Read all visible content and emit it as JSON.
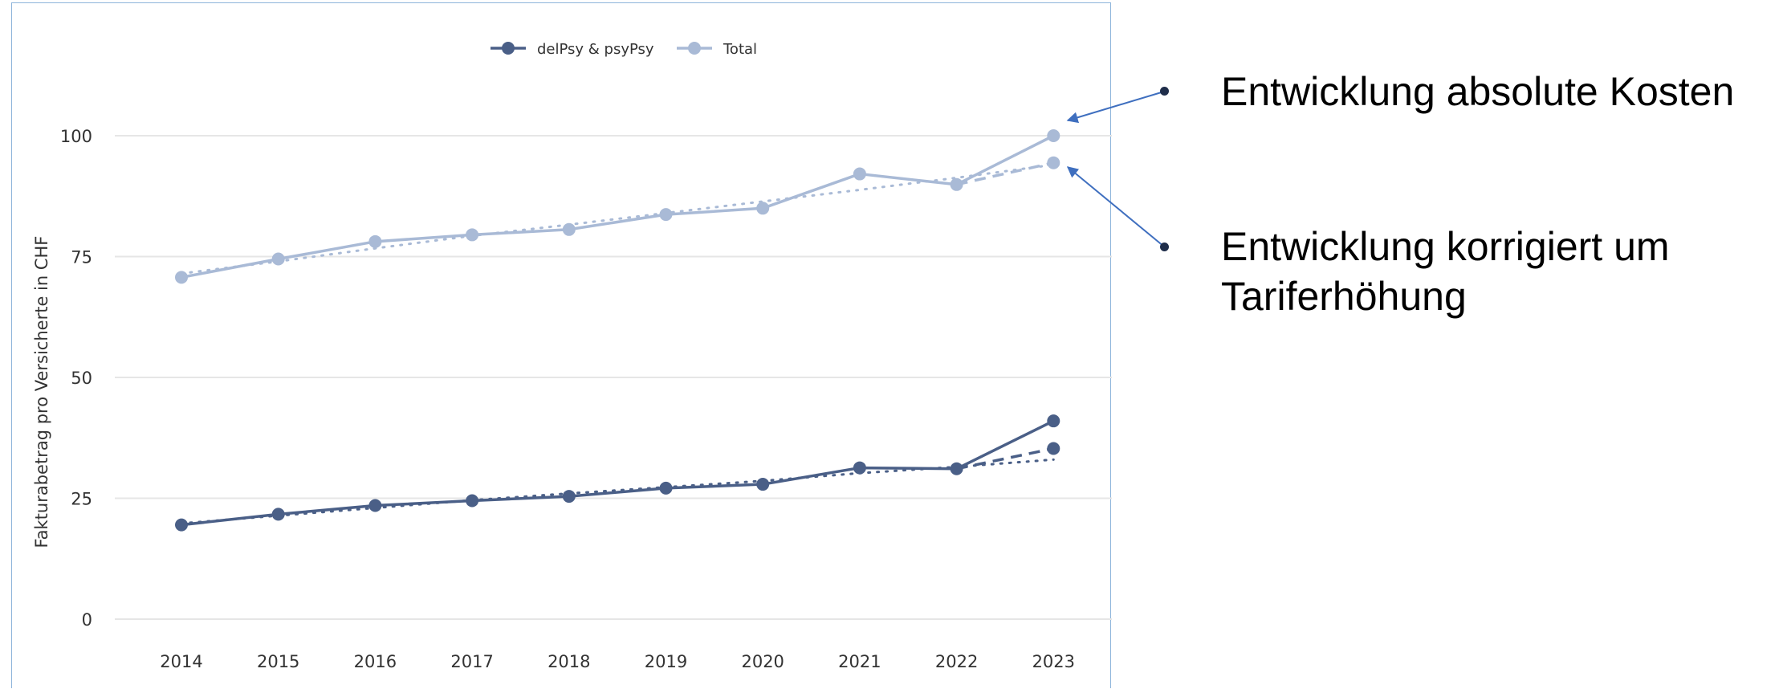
{
  "chart_data": {
    "type": "line",
    "title": "",
    "xlabel": "",
    "ylabel": "Fakturabetrag pro Versicherte in CHF",
    "x": [
      2014,
      2015,
      2016,
      2017,
      2018,
      2019,
      2020,
      2021,
      2022,
      2023
    ],
    "ylim": [
      0,
      110
    ],
    "yticks": [
      0,
      25,
      50,
      75,
      100
    ],
    "grid": true,
    "legend_position": "top-center",
    "series": [
      {
        "name": "delPsy & psyPsy",
        "color": "#4a5f87",
        "values": [
          19.5,
          21.7,
          23.5,
          24.5,
          25.4,
          27.1,
          27.9,
          31.3,
          31.1,
          41.0
        ],
        "corrected_2023": 35.3,
        "trend": [
          19.8,
          21.4,
          23.0,
          24.6,
          26.0,
          27.3,
          28.6,
          30.2,
          31.5,
          33.0
        ]
      },
      {
        "name": "Total",
        "color": "#a9bad6",
        "values": [
          70.7,
          74.5,
          78.1,
          79.5,
          80.6,
          83.7,
          85.0,
          92.1,
          89.9,
          100.0
        ],
        "corrected_2023": 94.4,
        "trend": [
          71.5,
          74.0,
          76.7,
          79.3,
          81.6,
          84.0,
          86.4,
          88.8,
          91.3,
          94.0
        ]
      }
    ]
  },
  "annotations": {
    "absolute": "Entwicklung absolute Kosten",
    "corrected_line1": "Entwicklung korrigiert um",
    "corrected_line2": "Tariferhöhung"
  },
  "colors": {
    "arrow": "#3f6fbf",
    "bullet": "#1f2d4a",
    "grid": "#e6e6e6"
  }
}
